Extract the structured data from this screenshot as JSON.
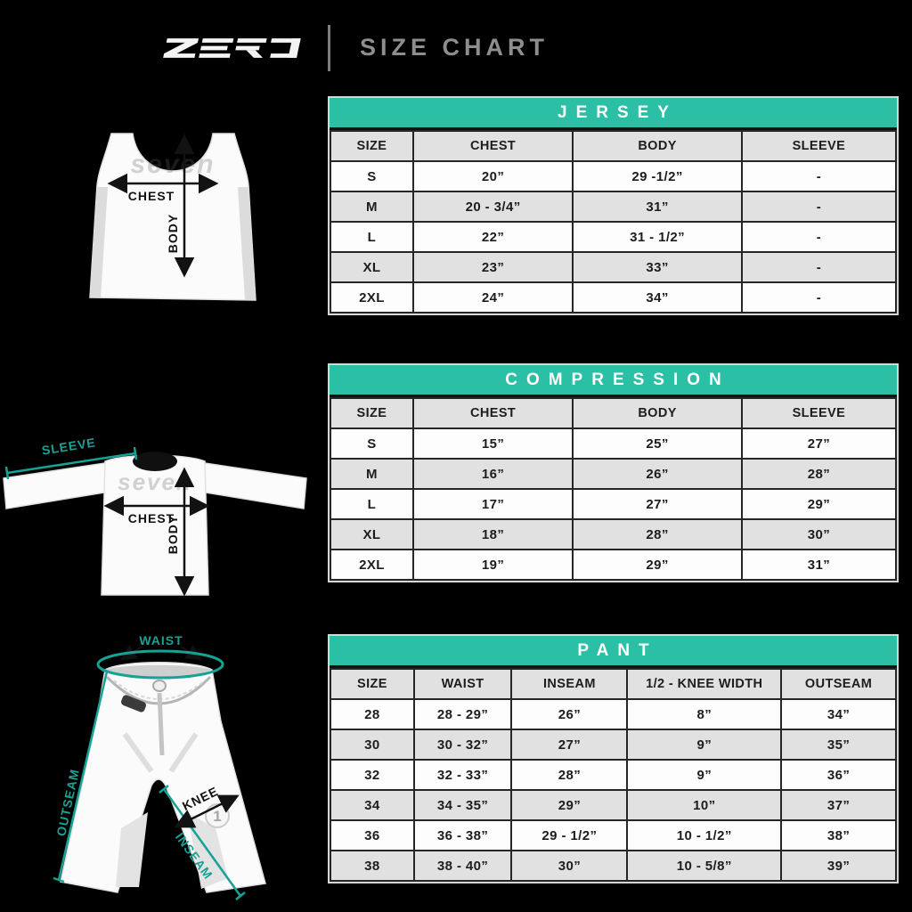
{
  "header": {
    "logo_text": "ZERO",
    "title": "SIZE CHART"
  },
  "colors": {
    "background": "#000000",
    "table_band_teal": "#2bbfa6",
    "annotation_teal": "#17a295",
    "row_alt_gray": "#e1e1e1",
    "title_gray": "#8e8e8e"
  },
  "tables": [
    {
      "title": "JERSEY",
      "columns": [
        "SIZE",
        "CHEST",
        "BODY",
        "SLEEVE"
      ],
      "rows": [
        [
          "S",
          "20”",
          "29 -1/2”",
          "-"
        ],
        [
          "M",
          "20 - 3/4”",
          "31”",
          "-"
        ],
        [
          "L",
          "22”",
          "31 - 1/2”",
          "-"
        ],
        [
          "XL",
          "23”",
          "33”",
          "-"
        ],
        [
          "2XL",
          "24”",
          "34”",
          "-"
        ]
      ]
    },
    {
      "title": "COMPRESSION",
      "columns": [
        "SIZE",
        "CHEST",
        "BODY",
        "SLEEVE"
      ],
      "rows": [
        [
          "S",
          "15”",
          "25”",
          "27”"
        ],
        [
          "M",
          "16”",
          "26”",
          "28”"
        ],
        [
          "L",
          "17”",
          "27”",
          "29”"
        ],
        [
          "XL",
          "18”",
          "28”",
          "30”"
        ],
        [
          "2XL",
          "19”",
          "29”",
          "31”"
        ]
      ]
    },
    {
      "title": "PANT",
      "columns": [
        "SIZE",
        "WAIST",
        "INSEAM",
        "1/2 - KNEE WIDTH",
        "OUTSEAM"
      ],
      "rows": [
        [
          "28",
          "28 - 29”",
          "26”",
          "8”",
          "34”"
        ],
        [
          "30",
          "30 - 32”",
          "27”",
          "9”",
          "35”"
        ],
        [
          "32",
          "32 - 33”",
          "28”",
          "9”",
          "36”"
        ],
        [
          "34",
          "34 - 35”",
          "29”",
          "10”",
          "37”"
        ],
        [
          "36",
          "36 - 38”",
          "29 - 1/2”",
          "10 - 1/2”",
          "38”"
        ],
        [
          "38",
          "38 - 40”",
          "30”",
          "10 - 5/8”",
          "39”"
        ]
      ]
    }
  ],
  "diagrams": {
    "jersey": {
      "watermark": "seven",
      "labels": {
        "chest": "CHEST",
        "body": "BODY"
      }
    },
    "compression": {
      "watermark": "seven",
      "labels": {
        "sleeve": "SLEEVE",
        "chest": "CHEST",
        "body": "BODY"
      }
    },
    "pant": {
      "logo_badge": "1",
      "labels": {
        "waist": "WAIST",
        "outseam": "OUTSEAM",
        "inseam": "INSEAM",
        "knee": "KNEE"
      }
    }
  }
}
